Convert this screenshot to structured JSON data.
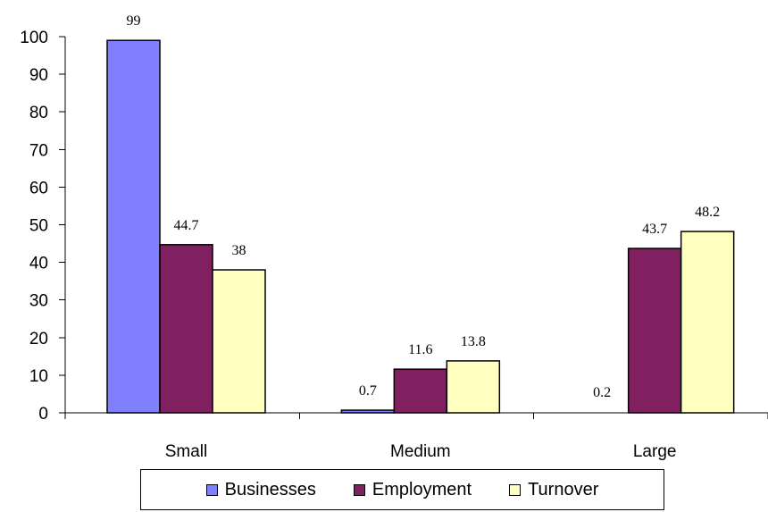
{
  "chart_data": {
    "type": "bar",
    "categories": [
      "Small",
      "Medium",
      "Large"
    ],
    "series": [
      {
        "name": "Businesses",
        "color": "#8080ff",
        "values": [
          99,
          0.7,
          0.2
        ]
      },
      {
        "name": "Employment",
        "color": "#802060",
        "values": [
          44.7,
          11.6,
          43.7
        ]
      },
      {
        "name": "Turnover",
        "color": "#ffffc0",
        "values": [
          38,
          13.8,
          48.2
        ]
      }
    ],
    "data_labels": [
      [
        "99",
        "0.7",
        "0.2"
      ],
      [
        "44.7",
        "11.6",
        "43.7"
      ],
      [
        "38",
        "13.8",
        "48.2"
      ]
    ],
    "y_ticks": [
      "0",
      "10",
      "20",
      "30",
      "40",
      "50",
      "60",
      "70",
      "80",
      "90",
      "100"
    ],
    "ylim": [
      0,
      100
    ],
    "grid": false,
    "legend_position": "bottom",
    "title": "",
    "xlabel": "",
    "ylabel": ""
  }
}
